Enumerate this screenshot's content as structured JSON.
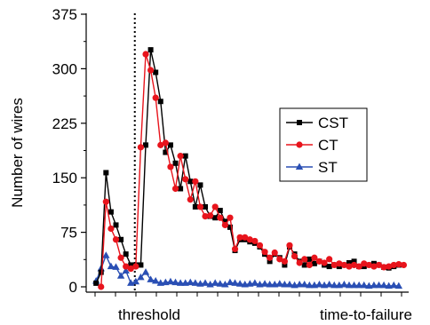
{
  "chart_data": {
    "type": "line",
    "title": "",
    "xlabel": "",
    "ylabel": "Number of wires",
    "ylim": [
      0,
      375
    ],
    "yticks": [
      0,
      75,
      150,
      225,
      300,
      375
    ],
    "xlim": [
      -2,
      63
    ],
    "x_tick_labels": [
      "threshold",
      "time-to-failure"
    ],
    "threshold_line": {
      "style": "dotted"
    },
    "grid": false,
    "legend_position": "center-right",
    "series": [
      {
        "name": "CST",
        "color": "#000000",
        "marker": "square",
        "x": [
          0,
          1,
          2,
          3,
          4,
          5,
          6,
          7,
          8,
          9,
          10,
          11,
          12,
          13,
          14,
          15,
          16,
          17,
          18,
          19,
          20,
          21,
          22,
          23,
          24,
          25,
          26,
          27,
          28,
          29,
          30,
          31,
          32,
          33,
          34,
          35,
          36,
          37,
          38,
          39,
          40,
          41,
          42,
          43,
          44,
          45,
          46,
          47,
          48,
          49,
          50,
          51,
          52,
          53,
          54,
          55,
          56,
          57,
          58,
          59,
          60,
          61
        ],
        "values": [
          5,
          20,
          157,
          103,
          85,
          65,
          45,
          30,
          30,
          30,
          195,
          326,
          295,
          255,
          185,
          195,
          170,
          135,
          180,
          145,
          110,
          140,
          110,
          97,
          95,
          105,
          90,
          82,
          50,
          65,
          65,
          62,
          60,
          55,
          45,
          35,
          45,
          40,
          30,
          55,
          45,
          35,
          30,
          38,
          32,
          35,
          30,
          28,
          30,
          28,
          30,
          33,
          35,
          28,
          28,
          30,
          32,
          30,
          27,
          26,
          28,
          30
        ],
        "render_first": 62
      },
      {
        "name": "CT",
        "color": "#e8141c",
        "marker": "circle",
        "x": [
          1,
          2,
          3,
          4,
          5,
          6,
          7,
          8,
          9,
          10,
          11,
          12,
          13,
          14,
          15,
          16,
          17,
          18,
          19,
          20,
          21,
          22,
          23,
          24,
          25,
          26,
          27,
          28,
          29,
          30,
          31,
          32,
          33,
          34,
          35,
          36,
          37,
          38,
          39,
          40,
          41,
          42,
          43,
          44,
          45,
          46,
          47,
          48,
          49,
          50,
          51,
          52,
          53,
          54,
          55,
          56,
          57,
          58,
          59,
          60,
          61,
          62
        ],
        "values": [
          0,
          117,
          80,
          65,
          40,
          28,
          25,
          28,
          192,
          320,
          298,
          260,
          195,
          198,
          165,
          135,
          180,
          148,
          120,
          145,
          110,
          97,
          98,
          110,
          95,
          85,
          95,
          52,
          68,
          68,
          65,
          63,
          57,
          48,
          40,
          47,
          38,
          35,
          57,
          42,
          33,
          38,
          30,
          40,
          35,
          33,
          38,
          30,
          32,
          30,
          28,
          30,
          28,
          32,
          30,
          28,
          30,
          27,
          28,
          30,
          31,
          30
        ]
      },
      {
        "name": "ST",
        "color": "#2a4fb4",
        "marker": "triangle",
        "x": [
          0,
          1,
          2,
          3,
          4,
          5,
          6,
          7,
          8,
          9,
          10,
          11,
          12,
          13,
          14,
          15,
          16,
          17,
          18,
          19,
          20,
          21,
          22,
          23,
          24,
          25,
          26,
          27,
          28,
          29,
          30,
          31,
          32,
          33,
          34,
          35,
          36,
          37,
          38,
          39,
          40,
          41,
          42,
          43,
          44,
          45,
          46,
          47,
          48,
          49,
          50,
          51,
          52,
          53,
          54,
          55,
          56,
          57,
          58,
          59,
          60,
          61
        ],
        "values": [
          8,
          25,
          43,
          28,
          27,
          15,
          22,
          5,
          7,
          13,
          20,
          10,
          8,
          5,
          6,
          7,
          6,
          5,
          5,
          6,
          5,
          4,
          5,
          3,
          5,
          4,
          3,
          6,
          5,
          4,
          3,
          4,
          5,
          3,
          4,
          3,
          3,
          4,
          3,
          3,
          2,
          3,
          3,
          2,
          2,
          3,
          2,
          3,
          2,
          2,
          3,
          2,
          2,
          2,
          2,
          1,
          2,
          2,
          2,
          1,
          2,
          1
        ]
      }
    ]
  }
}
